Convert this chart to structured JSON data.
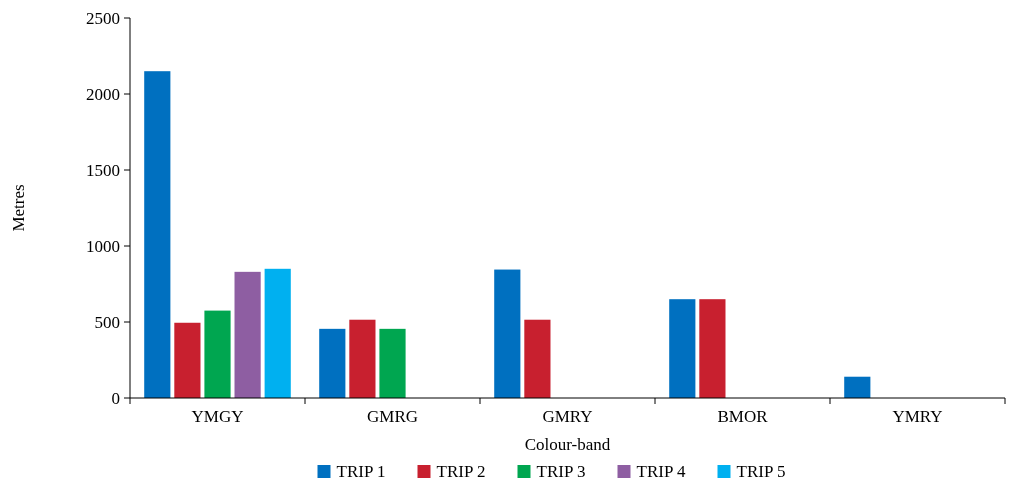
{
  "chart_data": {
    "type": "bar",
    "xlabel": "Colour-band",
    "ylabel": "Metres",
    "categories": [
      "YMGY",
      "GMRG",
      "GMRY",
      "BMOR",
      "YMRY"
    ],
    "series": [
      {
        "name": "TRIP 1",
        "color": "#0070c0",
        "values": [
          2150,
          455,
          845,
          650,
          140
        ]
      },
      {
        "name": "TRIP 2",
        "color": "#c8202f",
        "values": [
          495,
          515,
          515,
          650,
          null
        ]
      },
      {
        "name": "TRIP 3",
        "color": "#00a650",
        "values": [
          575,
          455,
          null,
          null,
          null
        ]
      },
      {
        "name": "TRIP 4",
        "color": "#8e5ea2",
        "values": [
          830,
          null,
          null,
          null,
          null
        ]
      },
      {
        "name": "TRIP 5",
        "color": "#00b0f0",
        "values": [
          850,
          null,
          null,
          null,
          null
        ]
      }
    ],
    "ylim": [
      0,
      2500
    ],
    "yticks": [
      0,
      500,
      1000,
      1500,
      2000,
      2500
    ],
    "grid": false,
    "legend": "bottom"
  }
}
